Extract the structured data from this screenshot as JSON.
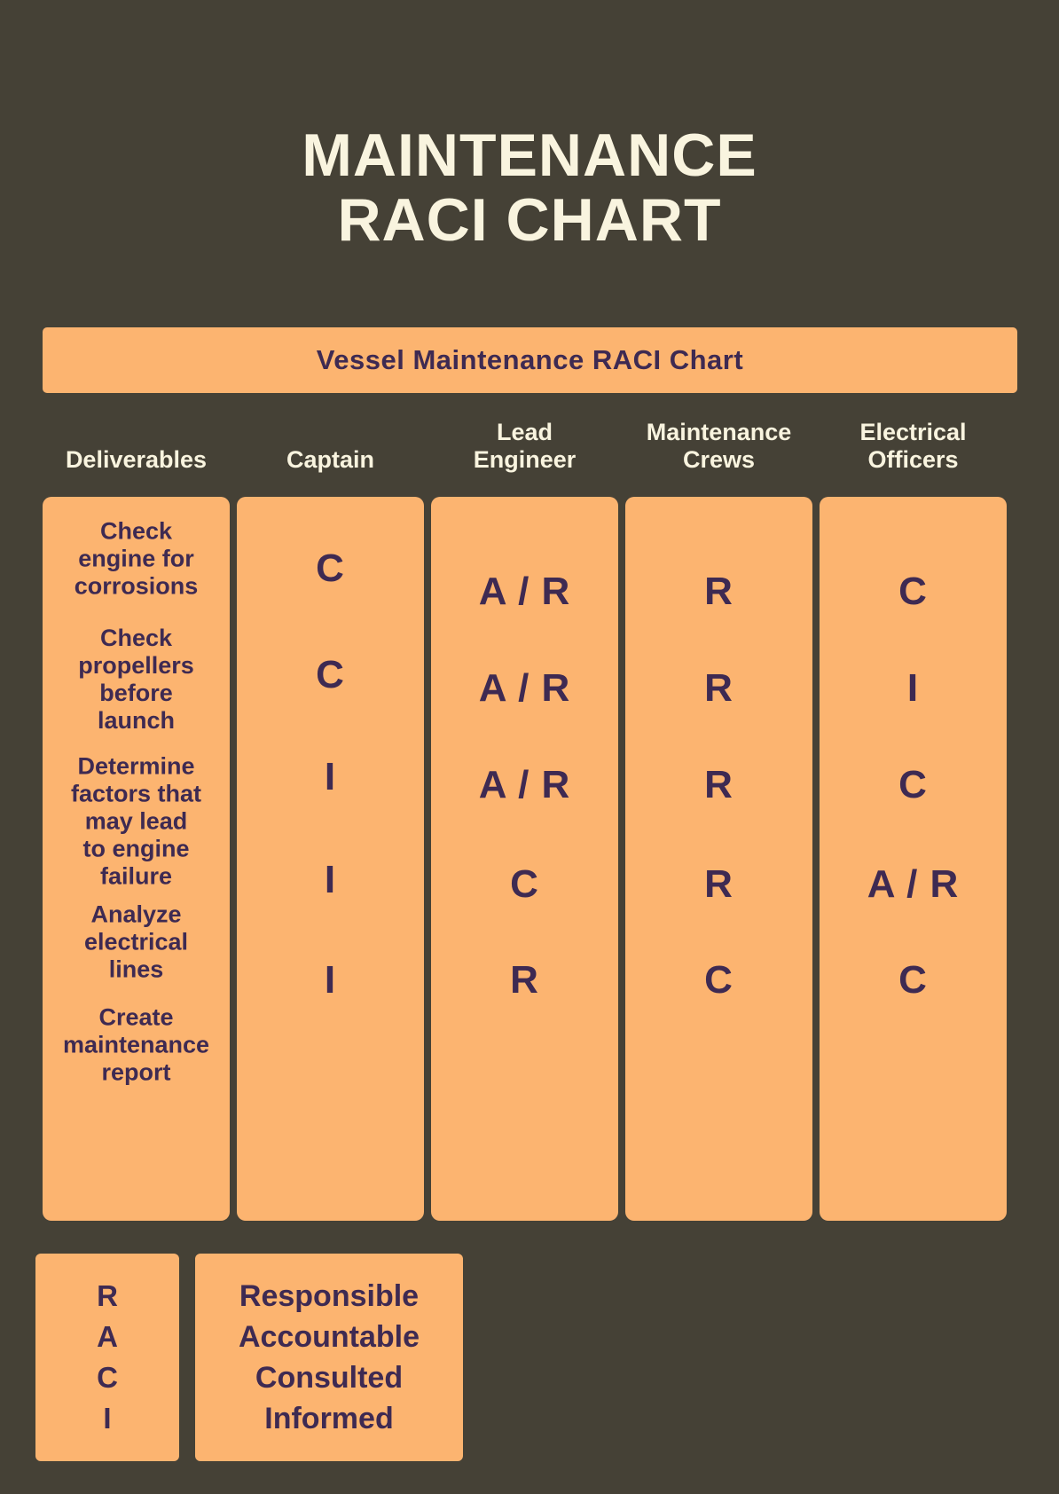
{
  "page": {
    "title_line1": "MAINTENANCE",
    "title_line2": "RACI CHART"
  },
  "banner": {
    "label": "Vessel Maintenance RACI Chart"
  },
  "chart": {
    "headers": [
      "Deliverables",
      "Captain",
      "Lead\nEngineer",
      "Maintenance\nCrews",
      "Electrical\nOfficers"
    ],
    "deliverables": [
      "Check\nengine for\ncorrosions",
      "Check\npropellers\nbefore\nlaunch",
      "Determine\nfactors that\nmay lead\nto engine\nfailure",
      "Analyze\nelectrical\nlines",
      "Create\nmaintenance\nreport"
    ],
    "roles": [
      {
        "name": "Captain",
        "values": [
          "C",
          "C",
          "I",
          "I",
          "I"
        ]
      },
      {
        "name": "Lead Engineer",
        "values": [
          "A / R",
          "A / R",
          "A / R",
          "C",
          "R"
        ]
      },
      {
        "name": "Maintenance Crews",
        "values": [
          "R",
          "R",
          "R",
          "R",
          "C"
        ]
      },
      {
        "name": "Electrical Officers",
        "values": [
          "C",
          "I",
          "C",
          "A / R",
          "C"
        ]
      }
    ]
  },
  "legend": {
    "letters": [
      "R",
      "A",
      "C",
      "I"
    ],
    "meanings": [
      "Responsible",
      "Accountable",
      "Consulted",
      "Informed"
    ]
  },
  "colors": {
    "background": "#454136",
    "panel": "#FCB470",
    "text_dark": "#3E2A52",
    "text_light": "#F9F4DF"
  },
  "chart_data": {
    "type": "table",
    "title": "Vessel Maintenance RACI Chart",
    "columns": [
      "Deliverables",
      "Captain",
      "Lead Engineer",
      "Maintenance Crews",
      "Electrical Officers"
    ],
    "rows": [
      [
        "Check engine for corrosions",
        "C",
        "A / R",
        "R",
        "C"
      ],
      [
        "Check propellers before launch",
        "C",
        "A / R",
        "R",
        "I"
      ],
      [
        "Determine factors that may lead to engine failure",
        "I",
        "A / R",
        "R",
        "C"
      ],
      [
        "Analyze electrical lines",
        "I",
        "C",
        "R",
        "A / R"
      ],
      [
        "Create maintenance report",
        "I",
        "R",
        "C",
        "C"
      ]
    ],
    "legend": {
      "R": "Responsible",
      "A": "Accountable",
      "C": "Consulted",
      "I": "Informed"
    }
  }
}
